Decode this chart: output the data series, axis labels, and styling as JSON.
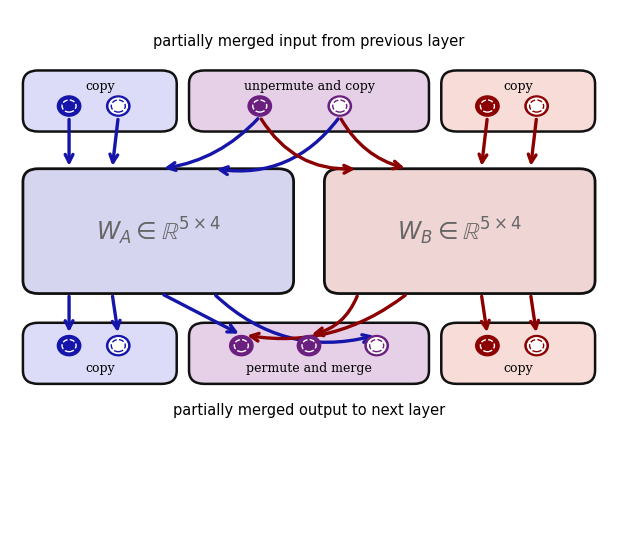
{
  "title_top": "partially merged input from previous layer",
  "title_bottom": "partially merged output to next layer",
  "blue": "#1515aa",
  "dark_red": "#8b0000",
  "purple": "#6b2080",
  "box_WA_fill": "#d5d5f0",
  "box_WB_fill": "#f0d5d5",
  "box_edge": "#111111",
  "top_left_fill": "#dcdcf8",
  "top_mid_fill": "#e5d0e8",
  "top_right_fill": "#f8dcd8",
  "bot_left_fill": "#dcdcf8",
  "bot_mid_fill": "#e5d0e8",
  "bot_right_fill": "#f8dcd8",
  "row_edge": "#111111",
  "label_top_left": "copy",
  "label_top_mid": "unpermute and copy",
  "label_top_right": "copy",
  "label_bot_left": "copy",
  "label_bot_mid": "permute and merge",
  "label_bot_right": "copy",
  "label_WA": "$W_A \\in \\mathbb{R}^{5\\times4}$",
  "label_WB": "$W_B \\in \\mathbb{R}^{5\\times4}$",
  "fig_width": 6.18,
  "fig_height": 5.34,
  "dpi": 100
}
